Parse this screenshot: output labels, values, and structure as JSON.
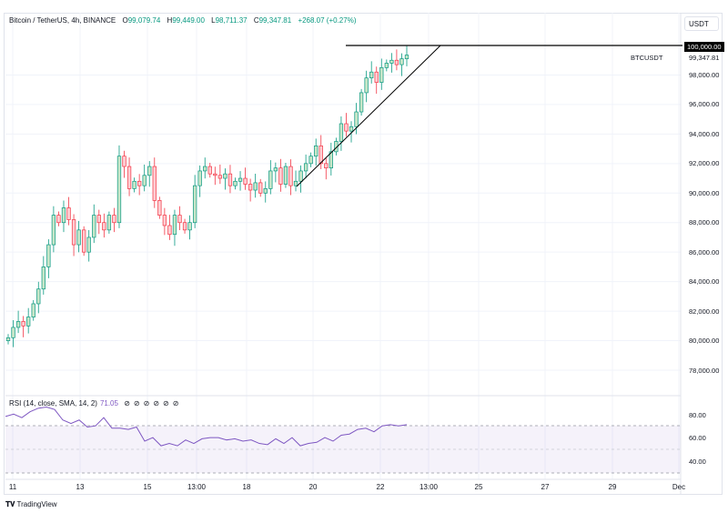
{
  "header": {
    "symbol": "Bitcoin / TetherUS, 4h, BINANCE",
    "open_label": "O",
    "open": "99,079.74",
    "high_label": "H",
    "high": "99,449.00",
    "low_label": "L",
    "low": "98,711.37",
    "close_label": "C",
    "close": "99,347.81",
    "change": "+268.07 (+0.27%)"
  },
  "currency": "USDT",
  "price_axis": {
    "labels": [
      "98,000.00",
      "96,000.00",
      "94,000.00",
      "92,000.00",
      "90,000.00",
      "88,000.00",
      "86,000.00",
      "84,000.00",
      "82,000.00",
      "80,000.00",
      "78,000.00"
    ],
    "marker_label": "100,000.00",
    "current_price": "99,347.81",
    "symbol_tag": "BTCUSDT"
  },
  "time_axis": {
    "labels": [
      "11",
      "13",
      "15",
      "13:00",
      "18",
      "20",
      "22",
      "13:00",
      "25",
      "27",
      "29",
      "Dec"
    ]
  },
  "rsi": {
    "label": "RSI (14, close, SMA, 14, 2)",
    "value": "71.05",
    "icons": [
      "⊘",
      "⊘",
      "⊘",
      "⊘",
      "⊘",
      "⊘"
    ],
    "axis_labels": [
      "80.00",
      "60.00",
      "40.00"
    ],
    "color": "#7e57c2"
  },
  "brand": "TradingView",
  "colors": {
    "up": "#089981",
    "down": "#f23645",
    "up_fill": "#c8e6c9",
    "down_fill": "#ffcdd2"
  },
  "chart_data": {
    "type": "candlestick",
    "first_open": 80000,
    "closes": [
      80200,
      80900,
      81300,
      81000,
      81600,
      82500,
      83500,
      85000,
      86500,
      88500,
      88000,
      89000,
      88200,
      86500,
      87500,
      86000,
      87000,
      88500,
      88000,
      87500,
      88500,
      88000,
      92500,
      91800,
      90300,
      90800,
      90500,
      91200,
      91800,
      89500,
      88500,
      87800,
      87200,
      88500,
      88000,
      87500,
      88000,
      90500,
      91500,
      91800,
      91300,
      91200,
      91000,
      91300,
      90500,
      90800,
      91000,
      90600,
      90200,
      90700,
      90000,
      90300,
      91500,
      91700,
      90600,
      91800,
      90500,
      90800,
      91500,
      92000,
      92500,
      93200,
      92000,
      91700,
      92800,
      93500,
      94700,
      94200,
      94500,
      95500,
      96800,
      97800,
      98200,
      97500,
      98500,
      98800,
      99000,
      98700,
      99100,
      99350
    ],
    "ylim": [
      77000,
      100500
    ],
    "horizontal_line": 100000,
    "rsi_values": [
      78,
      80,
      77,
      82,
      85,
      86,
      84,
      75,
      72,
      75,
      69,
      70,
      77,
      68,
      68,
      67,
      69,
      57,
      60,
      53,
      55,
      53,
      58,
      55,
      59,
      60,
      60,
      58,
      59,
      57,
      58,
      55,
      54,
      59,
      55,
      60,
      53,
      55,
      56,
      60,
      57,
      62,
      63,
      67,
      68,
      65,
      70,
      71,
      70,
      71
    ],
    "rsi_levels": [
      70,
      50,
      30
    ]
  }
}
